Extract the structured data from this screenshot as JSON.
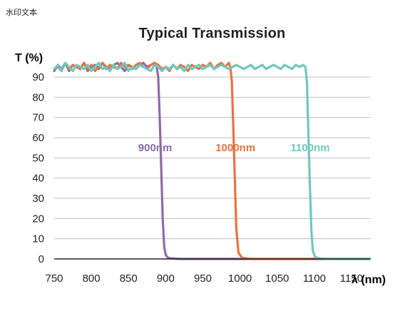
{
  "watermark": "水印文本",
  "chart_data": {
    "type": "line",
    "title": "Typical Transmission",
    "ylabel": "T (%)",
    "xlabel": "λ (nm)",
    "xlim": [
      750,
      1175
    ],
    "ylim": [
      0,
      100
    ],
    "xticks": [
      750,
      800,
      850,
      900,
      950,
      1000,
      1050,
      1100,
      1150
    ],
    "yticks": [
      0,
      10,
      20,
      30,
      40,
      50,
      60,
      70,
      80,
      90
    ],
    "grid": "horizontal",
    "series": [
      {
        "name": "900nm",
        "color": "#8f6aa8",
        "label_at": [
          863,
          55
        ],
        "x": [
          750,
          755,
          760,
          765,
          770,
          775,
          780,
          785,
          790,
          795,
          800,
          805,
          810,
          815,
          820,
          825,
          830,
          835,
          840,
          845,
          850,
          855,
          860,
          865,
          870,
          875,
          880,
          885,
          888,
          890,
          892,
          894,
          896,
          898,
          900,
          903,
          908,
          920,
          950,
          1000,
          1050,
          1100,
          1175
        ],
        "y": [
          93,
          96,
          94,
          97,
          93,
          96,
          95,
          94,
          97,
          93,
          95,
          96,
          94,
          97,
          95,
          94,
          96,
          97,
          95,
          93,
          96,
          95,
          94,
          96,
          97,
          95,
          96,
          97,
          95,
          90,
          70,
          45,
          20,
          6,
          2,
          0.6,
          0.2,
          0,
          0,
          0,
          0,
          0,
          0
        ]
      },
      {
        "name": "1000nm",
        "color": "#e8733e",
        "label_at": [
          967,
          55
        ],
        "x": [
          750,
          755,
          760,
          765,
          770,
          775,
          780,
          785,
          790,
          795,
          800,
          805,
          810,
          815,
          820,
          825,
          830,
          835,
          840,
          845,
          850,
          855,
          860,
          865,
          870,
          875,
          880,
          885,
          890,
          895,
          900,
          905,
          910,
          915,
          920,
          925,
          930,
          935,
          940,
          945,
          950,
          955,
          960,
          965,
          970,
          975,
          980,
          985,
          987,
          989,
          991,
          993,
          995,
          998,
          1003,
          1015,
          1050,
          1100,
          1175
        ],
        "y": [
          94,
          95,
          93,
          97,
          94,
          96,
          95,
          94,
          97,
          94,
          96,
          93,
          95,
          97,
          94,
          96,
          95,
          94,
          97,
          95,
          96,
          94,
          96,
          97,
          95,
          94,
          96,
          97,
          96,
          94,
          95,
          93,
          96,
          94,
          96,
          95,
          93,
          96,
          95,
          94,
          96,
          95,
          97,
          94,
          96,
          97,
          95,
          97,
          95,
          88,
          65,
          40,
          15,
          3,
          0.5,
          0,
          0,
          0,
          0
        ]
      },
      {
        "name": "1100nm",
        "color": "#6ec8bd",
        "label_at": [
          1068,
          55
        ],
        "x": [
          750,
          755,
          760,
          765,
          770,
          775,
          780,
          785,
          790,
          795,
          800,
          805,
          810,
          815,
          820,
          825,
          830,
          835,
          840,
          845,
          850,
          855,
          860,
          865,
          870,
          875,
          880,
          885,
          890,
          895,
          900,
          905,
          910,
          915,
          920,
          925,
          930,
          935,
          940,
          945,
          950,
          955,
          960,
          965,
          970,
          975,
          980,
          985,
          990,
          995,
          1000,
          1005,
          1010,
          1015,
          1020,
          1025,
          1030,
          1035,
          1040,
          1045,
          1050,
          1055,
          1060,
          1065,
          1070,
          1075,
          1080,
          1085,
          1088,
          1090,
          1092,
          1094,
          1096,
          1098,
          1101,
          1106,
          1120,
          1150,
          1175
        ],
        "y": [
          94,
          96,
          93,
          97,
          95,
          93,
          96,
          95,
          94,
          96,
          93,
          95,
          97,
          94,
          95,
          93,
          96,
          94,
          95,
          97,
          93,
          95,
          94,
          96,
          95,
          94,
          93,
          96,
          95,
          93,
          95,
          94,
          96,
          94,
          95,
          93,
          96,
          94,
          95,
          96,
          94,
          95,
          96,
          94,
          95,
          96,
          95,
          94,
          95,
          96,
          95,
          94,
          95,
          96,
          94,
          95,
          96,
          94,
          95,
          96,
          95,
          94,
          96,
          95,
          94,
          96,
          95,
          96,
          95,
          88,
          62,
          36,
          14,
          4,
          1,
          0.3,
          0,
          0,
          0
        ]
      }
    ]
  }
}
